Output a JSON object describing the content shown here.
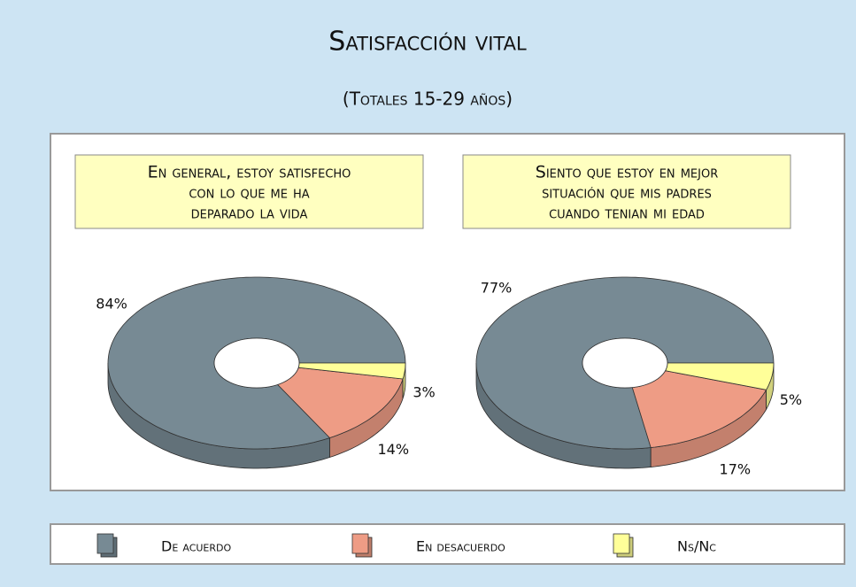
{
  "title": "Satisfacción vital",
  "subtitle": "(Totales 15-29 años)",
  "chart_data": [
    {
      "type": "pie",
      "title": [
        "En general, estoy satisfecho",
        "con lo que me ha",
        "deparado la vida"
      ],
      "categories": [
        "De acuerdo",
        "En desacuerdo",
        "Ns/Nc"
      ],
      "values": [
        84,
        14,
        3
      ],
      "value_labels": [
        "84%",
        "14%",
        "3%"
      ],
      "colors": [
        "#778a94",
        "#ee9c85",
        "#ffff99"
      ]
    },
    {
      "type": "pie",
      "title": [
        "Siento que estoy en mejor",
        "situación que mis padres",
        "cuando tenian mi edad"
      ],
      "categories": [
        "De acuerdo",
        "En desacuerdo",
        "Ns/Nc"
      ],
      "values": [
        77,
        17,
        5
      ],
      "value_labels": [
        "77%",
        "17%",
        "5%"
      ],
      "colors": [
        "#778a94",
        "#ee9c85",
        "#ffff99"
      ]
    }
  ]
}
